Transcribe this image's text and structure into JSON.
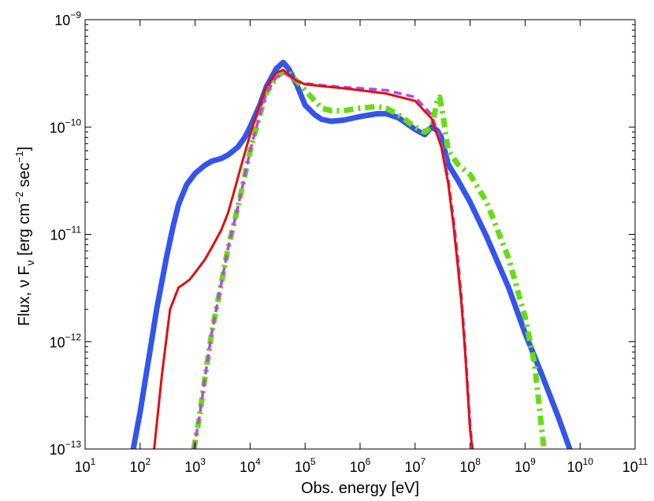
{
  "chart_data": {
    "type": "line",
    "title": "",
    "xlabel": "Obs. energy [eV]",
    "ylabel": {
      "prefix": "Flux, ",
      "nu": "ν",
      "f": " F",
      "sub": "ν",
      "bracket_open": " [erg cm",
      "exp1": "−2",
      "sec": " sec",
      "exp2": "−1",
      "bracket_close": "]"
    },
    "xscale": "log",
    "yscale": "log",
    "xlim": [
      10,
      100000000000
    ],
    "ylim": [
      1e-13,
      1e-09
    ],
    "grid": false,
    "legend": "none",
    "x_ticks": [
      {
        "base": "10",
        "exp": "1",
        "value": 10
      },
      {
        "base": "10",
        "exp": "2",
        "value": 100
      },
      {
        "base": "10",
        "exp": "3",
        "value": 1000
      },
      {
        "base": "10",
        "exp": "4",
        "value": 10000
      },
      {
        "base": "10",
        "exp": "5",
        "value": 100000
      },
      {
        "base": "10",
        "exp": "6",
        "value": 1000000
      },
      {
        "base": "10",
        "exp": "7",
        "value": 10000000
      },
      {
        "base": "10",
        "exp": "8",
        "value": 100000000
      },
      {
        "base": "10",
        "exp": "9",
        "value": 1000000000
      },
      {
        "base": "10",
        "exp": "10",
        "value": 10000000000
      },
      {
        "base": "10",
        "exp": "11",
        "value": 100000000000
      }
    ],
    "y_ticks": [
      {
        "base": "10",
        "exp": "−13",
        "value": 1e-13
      },
      {
        "base": "10",
        "exp": "−12",
        "value": 1e-12
      },
      {
        "base": "10",
        "exp": "−11",
        "value": 1e-11
      },
      {
        "base": "10",
        "exp": "−10",
        "value": 1e-10
      },
      {
        "base": "10",
        "exp": "−9",
        "value": 1e-09
      }
    ],
    "series": [
      {
        "name": "blue-thick-solid",
        "color": "#3355ee",
        "style": "solid",
        "x": [
          75,
          100,
          150,
          200,
          300,
          400,
          500,
          700,
          1000,
          1500,
          2000,
          3000,
          4000,
          6000,
          8000,
          10000,
          15000,
          20000,
          30000,
          40000,
          50000,
          70000,
          100000,
          150000,
          200000,
          300000,
          500000,
          1000000,
          2000000,
          3000000,
          5000000,
          10000000,
          15000000,
          20000000,
          25000000,
          30000000,
          40000000,
          60000000,
          100000000,
          200000000,
          500000000,
          1000000000,
          2000000000,
          4000000000,
          6500000000
        ],
        "y": [
          1e-13,
          2.2e-13,
          8e-13,
          2e-12,
          6e-12,
          1.2e-11,
          1.9e-11,
          2.9e-11,
          3.7e-11,
          4.4e-11,
          4.8e-11,
          5.1e-11,
          5.5e-11,
          6.5e-11,
          8e-11,
          1e-10,
          1.6e-10,
          2.4e-10,
          3.5e-10,
          4e-10,
          3.5e-10,
          2.5e-10,
          1.6e-10,
          1.3e-10,
          1.18e-10,
          1.13e-10,
          1.16e-10,
          1.25e-10,
          1.33e-10,
          1.33e-10,
          1.22e-10,
          9.5e-11,
          8.5e-11,
          1e-10,
          9.3e-11,
          8e-11,
          4.5e-11,
          3.2e-11,
          2e-11,
          9.5e-12,
          3.2e-12,
          1.2e-12,
          5e-13,
          2e-13,
          1e-13
        ]
      },
      {
        "name": "red-solid",
        "color": "#e01010",
        "style": "solid",
        "x": [
          180,
          250,
          350,
          500,
          600,
          800,
          1000,
          1500,
          2000,
          3000,
          4000,
          5000,
          7000,
          10000,
          15000,
          20000,
          30000,
          40000,
          50000,
          70000,
          100000,
          200000,
          500000,
          1000000,
          3000000,
          10000000,
          20000000,
          30000000,
          40000000,
          50000000,
          60000000,
          70000000,
          80000000,
          90000000,
          100000000,
          110000000
        ],
        "y": [
          1e-13,
          5e-13,
          2e-12,
          3.2e-12,
          3.4e-12,
          3.8e-12,
          4.4e-12,
          5.8e-12,
          7.5e-12,
          1.1e-11,
          1.6e-11,
          2.4e-11,
          4.5e-11,
          8.5e-11,
          1.6e-10,
          2.4e-10,
          3.2e-10,
          3.4e-10,
          3.1e-10,
          2.7e-10,
          2.5e-10,
          2.4e-10,
          2.3e-10,
          2.2e-10,
          2.05e-10,
          1.75e-10,
          1.2e-10,
          6.5e-11,
          3e-11,
          1.2e-11,
          5e-12,
          2.2e-12,
          9e-13,
          3.5e-13,
          1.5e-13,
          1e-13
        ]
      },
      {
        "name": "magenta-dashed",
        "color": "#bb44ee",
        "style": "dashed",
        "x": [
          950,
          1200,
          1500,
          2000,
          3000,
          4000,
          6000,
          8000,
          10000,
          15000,
          20000,
          30000,
          40000,
          50000,
          70000,
          100000,
          200000,
          500000,
          1000000,
          3000000,
          10000000,
          20000000,
          30000000,
          40000000,
          50000000,
          60000000,
          70000000,
          80000000,
          90000000,
          100000000,
          110000000
        ],
        "y": [
          1e-13,
          2e-13,
          4.5e-13,
          1.2e-12,
          3.5e-12,
          7.5e-12,
          1.8e-11,
          3.5e-11,
          6e-11,
          1.3e-10,
          2.1e-10,
          2.9e-10,
          3.2e-10,
          3e-10,
          2.7e-10,
          2.55e-10,
          2.45e-10,
          2.35e-10,
          2.3e-10,
          2.2e-10,
          1.9e-10,
          1.3e-10,
          7e-11,
          3.3e-11,
          1.4e-11,
          6e-12,
          2.5e-12,
          1e-12,
          4e-13,
          1.7e-13,
          1e-13
        ]
      },
      {
        "name": "green-dash-dot",
        "color": "#66dd11",
        "style": "dashdot",
        "x": [
          950,
          1200,
          1500,
          2000,
          3000,
          4000,
          6000,
          8000,
          10000,
          15000,
          20000,
          30000,
          40000,
          50000,
          70000,
          100000,
          150000,
          200000,
          300000,
          500000,
          1000000,
          2000000,
          3000000,
          5000000,
          10000000,
          15000000,
          20000000,
          25000000,
          28000000,
          32000000,
          40000000,
          60000000,
          100000000,
          200000000,
          500000000,
          1000000000,
          1500000000,
          2200000000
        ],
        "y": [
          1e-13,
          2e-13,
          4.5e-13,
          1.2e-12,
          3.5e-12,
          7.5e-12,
          1.8e-11,
          3.5e-11,
          6e-11,
          1.3e-10,
          2.1e-10,
          2.9e-10,
          3.3e-10,
          3.2e-10,
          2.7e-10,
          2.2e-10,
          1.75e-10,
          1.5e-10,
          1.42e-10,
          1.42e-10,
          1.5e-10,
          1.55e-10,
          1.5e-10,
          1.3e-10,
          1e-10,
          9e-11,
          1e-10,
          1.7e-10,
          1.9e-10,
          1.3e-10,
          6e-11,
          4.5e-11,
          3.6e-11,
          2e-11,
          6e-12,
          1.7e-12,
          6e-13,
          1e-13
        ]
      }
    ]
  }
}
